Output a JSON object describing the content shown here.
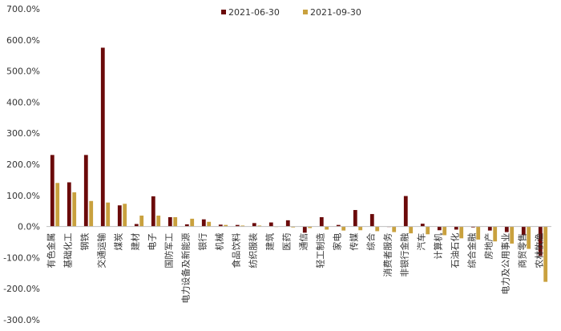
{
  "chart_data": {
    "type": "bar",
    "categories": [
      "有色金属",
      "基础化工",
      "钢铁",
      "交通运输",
      "煤炭",
      "建材",
      "电子",
      "国防军工",
      "电力设备及新能源",
      "银行",
      "机械",
      "食品饮料",
      "纺织服装",
      "建筑",
      "医药",
      "通信",
      "轻工制造",
      "家电",
      "传媒",
      "综合",
      "消费者服务",
      "非银行金融",
      "汽车",
      "计算机",
      "石油石化",
      "综合金融",
      "房地产",
      "电力及公用事业",
      "商贸零售",
      "农林牧渔"
    ],
    "series": [
      {
        "name": "2021-06-30",
        "color": "#6b0a0a",
        "values": [
          230,
          142,
          230,
          575,
          68,
          8,
          97,
          30,
          7,
          23,
          6,
          5,
          11,
          13,
          20,
          -20,
          30,
          5,
          53,
          40,
          0,
          98,
          9,
          -12,
          -10,
          -3,
          -13,
          -18,
          -28,
          -95
        ]
      },
      {
        "name": "2021-09-30",
        "color": "#c9a13e",
        "values": [
          140,
          110,
          82,
          77,
          73,
          35,
          35,
          30,
          25,
          15,
          5,
          3,
          3,
          0,
          -3,
          -5,
          -10,
          -13,
          -12,
          -15,
          -18,
          -22,
          -25,
          -28,
          -38,
          -42,
          -48,
          -55,
          -72,
          -178
        ]
      }
    ],
    "ylim": [
      -300,
      700
    ],
    "yticks": [
      "-300.0%",
      "-200.0%",
      "-100.0%",
      "0.0%",
      "100.0%",
      "200.0%",
      "300.0%",
      "400.0%",
      "500.0%",
      "600.0%",
      "700.0%"
    ],
    "ytick_values": [
      -300,
      -200,
      -100,
      0,
      100,
      200,
      300,
      400,
      500,
      600,
      700
    ],
    "legend_position": "top-center",
    "grid": false
  }
}
